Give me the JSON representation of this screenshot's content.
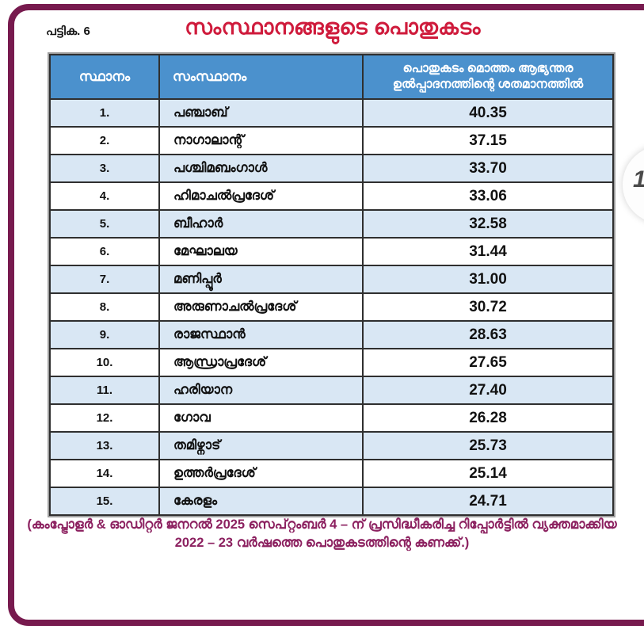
{
  "page": {
    "table_label": "പട്ടിക. 6",
    "title": "സംസ്ഥാനങ്ങളുടെ പൊതുകടം",
    "badge_digit": "1"
  },
  "table": {
    "columns": {
      "rank": "സ്ഥാനം",
      "state": "സംസ്ഥാനം",
      "value": "പൊതുകടം മൊത്തം ആഭ്യന്തര ഉൽപ്പാദനത്തിന്റെ ശതമാനത്തിൽ"
    },
    "rows": [
      {
        "rank": "1.",
        "state": "പഞ്ചാബ്",
        "value": "40.35"
      },
      {
        "rank": "2.",
        "state": "നാഗാലാന്റ്",
        "value": "37.15"
      },
      {
        "rank": "3.",
        "state": "പശ്ചിമബംഗാൾ",
        "value": "33.70"
      },
      {
        "rank": "4.",
        "state": "ഹിമാചൽപ്രദേശ്",
        "value": "33.06"
      },
      {
        "rank": "5.",
        "state": "ബീഹാർ",
        "value": "32.58"
      },
      {
        "rank": "6.",
        "state": "മേഘാലയ",
        "value": "31.44"
      },
      {
        "rank": "7.",
        "state": "മണിപ്പൂർ",
        "value": "31.00"
      },
      {
        "rank": "8.",
        "state": "അരുണാചൽപ്രദേശ്",
        "value": "30.72"
      },
      {
        "rank": "9.",
        "state": "രാജസ്ഥാൻ",
        "value": "28.63"
      },
      {
        "rank": "10.",
        "state": "ആന്ധ്രാപ്രദേശ്",
        "value": "27.65"
      },
      {
        "rank": "11.",
        "state": "ഹരിയാന",
        "value": "27.40"
      },
      {
        "rank": "12.",
        "state": "ഗോവ",
        "value": "26.28"
      },
      {
        "rank": "13.",
        "state": "തമിഴ്നാട്",
        "value": "25.73"
      },
      {
        "rank": "14.",
        "state": "ഉത്തർപ്രദേശ്",
        "value": "25.14"
      },
      {
        "rank": "15.",
        "state": "കേരളം",
        "value": "24.71"
      }
    ]
  },
  "footer": {
    "line1": "(കംപ്ട്രോളർ & ഓഡിറ്റർ ജനറൽ 2025 സെപ്റ്റംബർ 4 – ന് പ്രസിദ്ധീകരിച്ച റിപ്പോർട്ടിൽ വ്യക്തമാക്കിയ",
    "line2": "2022 – 23 വർഷത്തെ പൊതുകടത്തിന്റെ കണക്ക്.)"
  },
  "colors": {
    "page_border": "#771a4e",
    "title_text": "#cf1b3c",
    "header_bg": "#4b91cd",
    "row_alt_bg": "#d9e7f4",
    "footer_text": "#8c2160"
  }
}
